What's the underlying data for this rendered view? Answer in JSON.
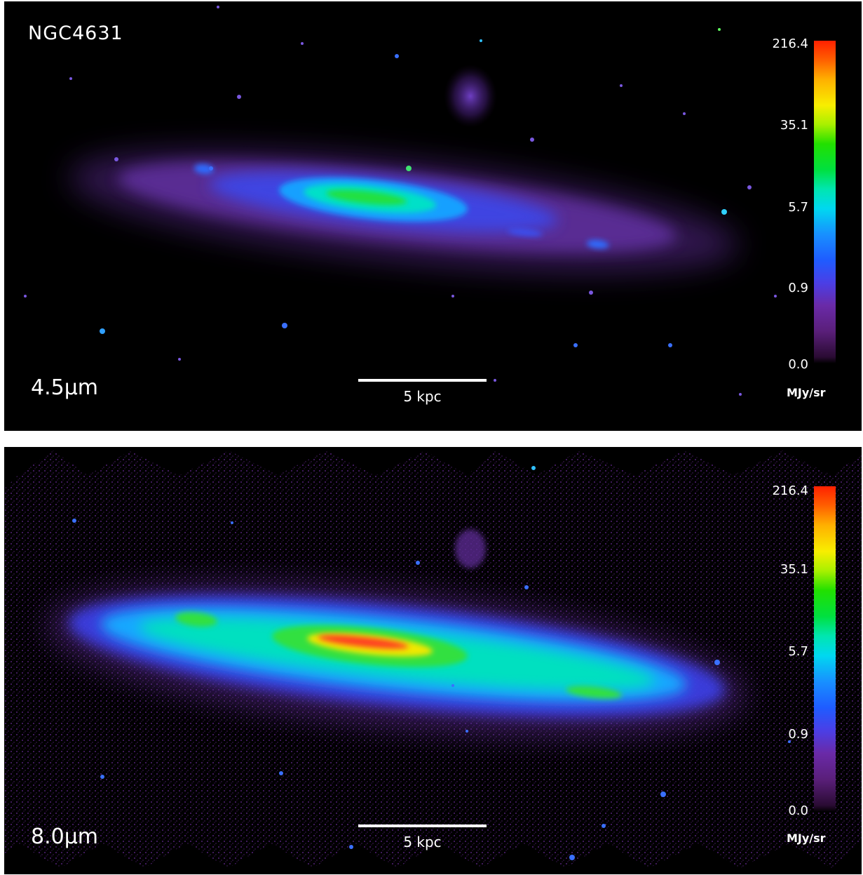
{
  "panels": [
    {
      "object_name": "NGC4631",
      "band": "4.5μm",
      "scalebar": "5 kpc",
      "colorbar": {
        "ticks": [
          "216.4",
          "35.1",
          "5.7",
          "0.9",
          "0.0"
        ],
        "unit": "MJy/sr",
        "colors": [
          "#000000",
          "#6a2aa8",
          "#1f5cff",
          "#00e6b0",
          "#22e000",
          "#f8ee00",
          "#ff2000"
        ]
      }
    },
    {
      "object_name": "",
      "band": "8.0μm",
      "scalebar": "5 kpc",
      "colorbar": {
        "ticks": [
          "216.4",
          "35.1",
          "5.7",
          "0.9",
          "0.0"
        ],
        "unit": "MJy/sr",
        "colors": [
          "#000000",
          "#6a2aa8",
          "#1f5cff",
          "#00e6b0",
          "#22e000",
          "#f8ee00",
          "#ff2000"
        ]
      }
    }
  ]
}
